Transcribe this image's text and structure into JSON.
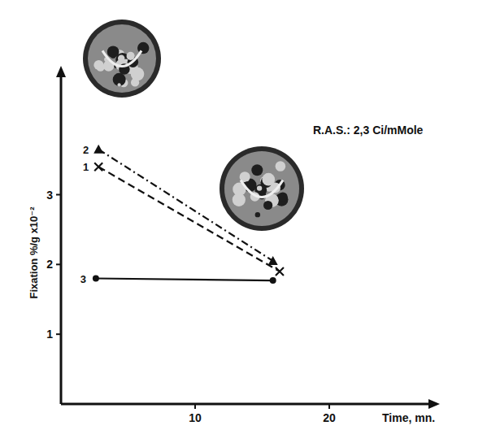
{
  "chart_data": {
    "type": "line",
    "annotation": "R.A.S.: 2,3 Ci/mMole",
    "x_label": "Time, mn.",
    "y_label": "Fixation %/g x10⁻²",
    "xlim": [
      0,
      28
    ],
    "ylim": [
      0,
      4.8
    ],
    "xticks": [
      10,
      20
    ],
    "yticks": [
      1,
      2,
      3
    ],
    "series": [
      {
        "name": "1",
        "color": "#111111",
        "marker": "x",
        "line_style": "dashed",
        "x": [
          2.8,
          16.3
        ],
        "values": [
          3.4,
          1.9
        ]
      },
      {
        "name": "2",
        "color": "#111111",
        "marker": "triangle",
        "line_style": "dashdot",
        "x": [
          2.8,
          15.8
        ],
        "values": [
          3.65,
          2.05
        ]
      },
      {
        "name": "3",
        "color": "#111111",
        "marker": "circle",
        "line_style": "solid",
        "x": [
          2.6,
          15.8
        ],
        "values": [
          1.8,
          1.77
        ]
      }
    ]
  }
}
